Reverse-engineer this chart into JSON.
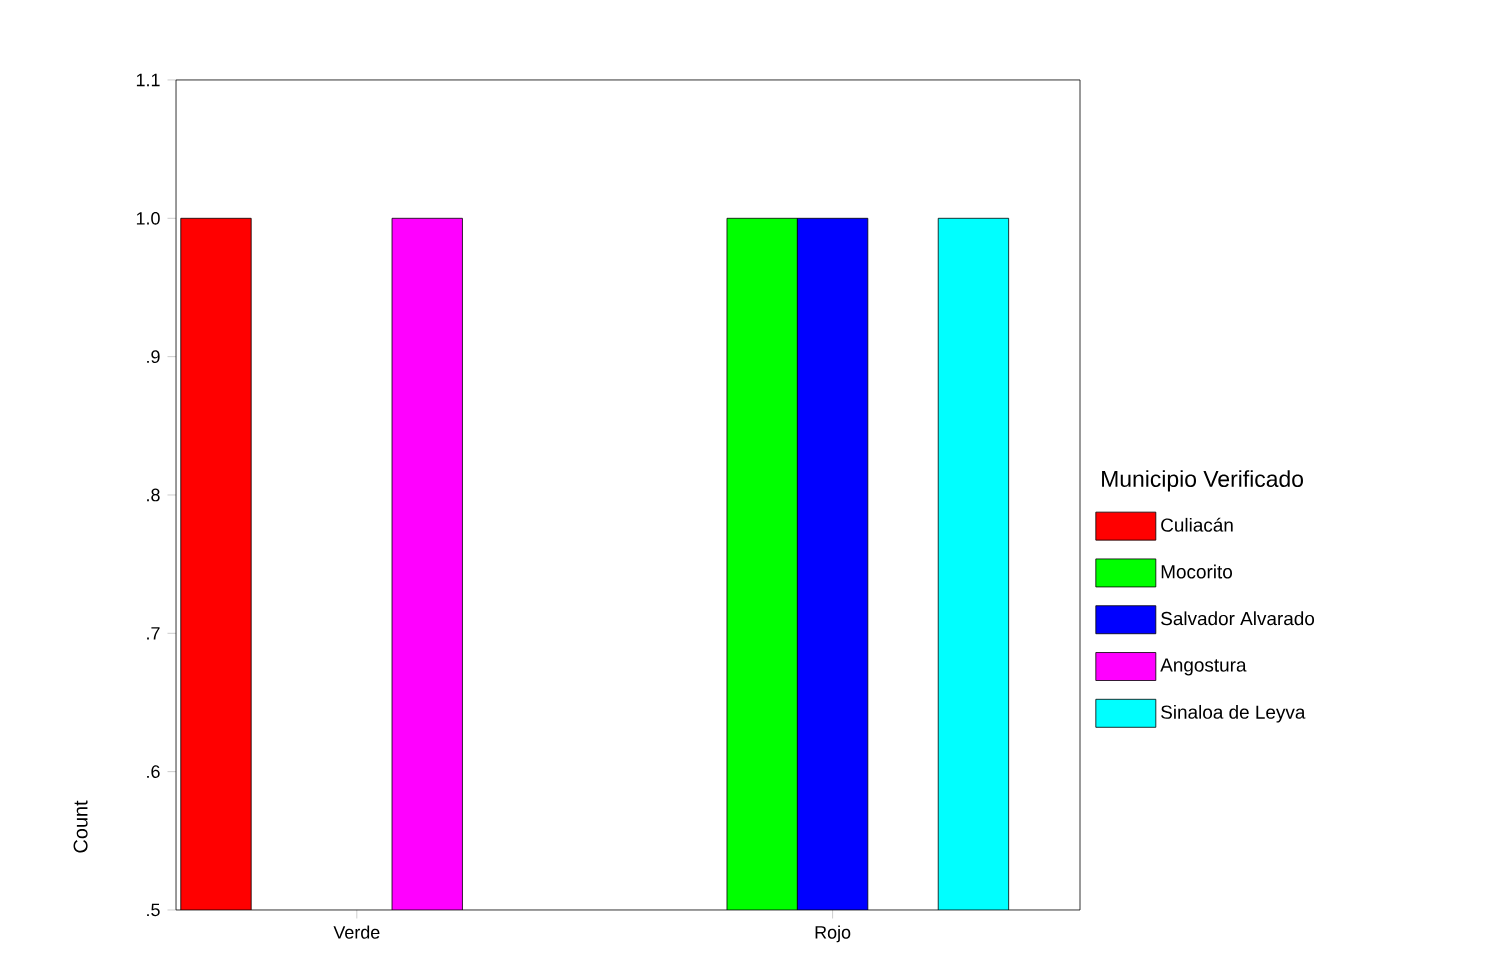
{
  "chart_data": {
    "type": "bar",
    "ylabel": "Count",
    "legend_title": "Municipio Verificado",
    "categories": [
      "Verde",
      "Rojo"
    ],
    "series": [
      {
        "name": "Culiacán",
        "color": "#ff0000",
        "values": [
          1.0,
          null
        ]
      },
      {
        "name": "Mocorito",
        "color": "#00ff00",
        "values": [
          null,
          1.0
        ]
      },
      {
        "name": "Salvador Alvarado",
        "color": "#0000ff",
        "values": [
          null,
          1.0
        ]
      },
      {
        "name": "Angostura",
        "color": "#ff00ff",
        "values": [
          1.0,
          null
        ]
      },
      {
        "name": "Sinaloa de Leyva",
        "color": "#00ffff",
        "values": [
          null,
          1.0
        ]
      }
    ],
    "ylim": [
      0.5,
      1.1
    ],
    "yticks": [
      {
        "value": 0.5,
        "label": ".5"
      },
      {
        "value": 0.6,
        "label": ".6"
      },
      {
        "value": 0.7,
        "label": ".7"
      },
      {
        "value": 0.8,
        "label": ".8"
      },
      {
        "value": 0.9,
        "label": ".9"
      },
      {
        "value": 1.0,
        "label": "1.0"
      },
      {
        "value": 1.1,
        "label": "1.1"
      }
    ],
    "grid": false,
    "legend": "right"
  }
}
